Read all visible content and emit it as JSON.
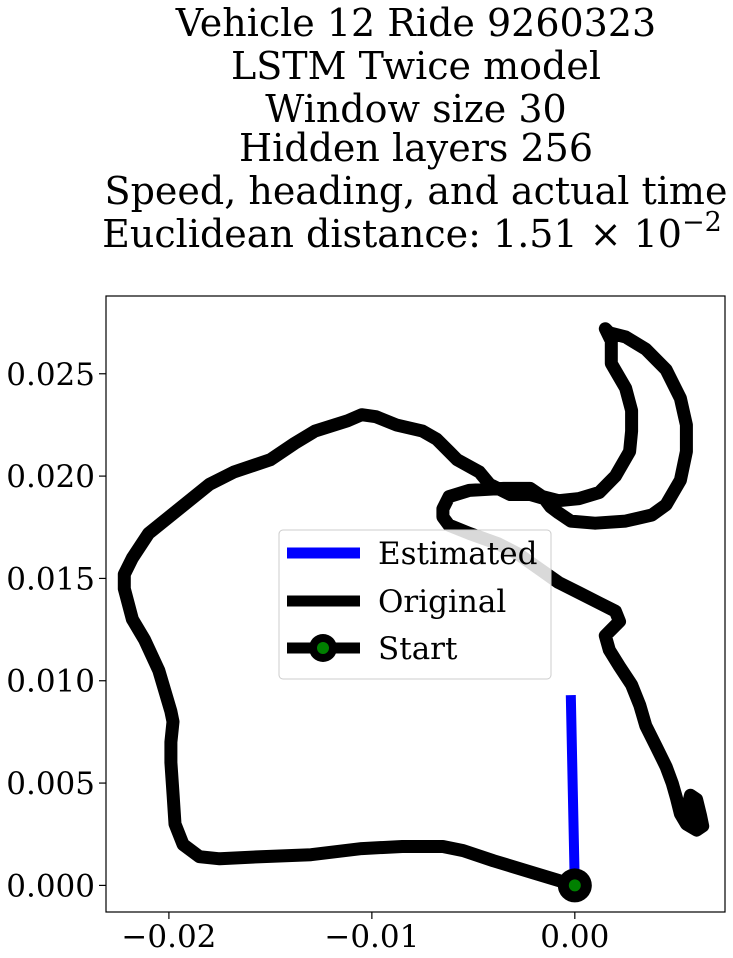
{
  "chart_data": {
    "type": "line",
    "title_lines": [
      "Vehicle 12 Ride 9260323",
      "LSTM Twice model",
      "Window size 30",
      "Hidden layers 256",
      "Speed, heading, and actual time",
      "Euclidean distance: 1.51 × 10",
      "−2"
    ],
    "xlabel": "",
    "ylabel": "",
    "xlim": [
      -0.0231,
      0.0074
    ],
    "ylim": [
      -0.0013,
      0.0288
    ],
    "x_ticks": [
      {
        "value": -0.02,
        "label": "−0.02"
      },
      {
        "value": -0.01,
        "label": "−0.01"
      },
      {
        "value": 0.0,
        "label": "0.00"
      }
    ],
    "y_ticks": [
      {
        "value": 0.0,
        "label": "0.000"
      },
      {
        "value": 0.005,
        "label": "0.005"
      },
      {
        "value": 0.01,
        "label": "0.010"
      },
      {
        "value": 0.015,
        "label": "0.015"
      },
      {
        "value": 0.02,
        "label": "0.020"
      },
      {
        "value": 0.025,
        "label": "0.025"
      }
    ],
    "grid": false,
    "legend_position": "center",
    "legend": [
      {
        "label": "Estimated",
        "color": "#0000ff"
      },
      {
        "label": "Original",
        "color": "#000000"
      },
      {
        "label": "Start",
        "color": "#000000",
        "marker_color": "#008000"
      }
    ],
    "series": [
      {
        "name": "Original",
        "color": "#000000",
        "points": [
          [
            0.0,
            0.0
          ],
          [
            -0.002,
            0.0006
          ],
          [
            -0.004,
            0.0012
          ],
          [
            -0.0055,
            0.0017
          ],
          [
            -0.0065,
            0.0019
          ],
          [
            -0.0085,
            0.0019
          ],
          [
            -0.0105,
            0.0018
          ],
          [
            -0.013,
            0.0015
          ],
          [
            -0.0155,
            0.0014
          ],
          [
            -0.0175,
            0.0013
          ],
          [
            -0.0185,
            0.0014
          ],
          [
            -0.0193,
            0.002
          ],
          [
            -0.0197,
            0.003
          ],
          [
            -0.0198,
            0.0045
          ],
          [
            -0.0199,
            0.006
          ],
          [
            -0.0199,
            0.007
          ],
          [
            -0.0198,
            0.008
          ],
          [
            -0.0199,
            0.0085
          ],
          [
            -0.0205,
            0.0105
          ],
          [
            -0.0212,
            0.012
          ],
          [
            -0.0218,
            0.013
          ],
          [
            -0.0222,
            0.0145
          ],
          [
            -0.0222,
            0.0152
          ],
          [
            -0.0218,
            0.016
          ],
          [
            -0.021,
            0.0172
          ],
          [
            -0.019,
            0.0188
          ],
          [
            -0.018,
            0.0196
          ],
          [
            -0.0168,
            0.0202
          ],
          [
            -0.015,
            0.0208
          ],
          [
            -0.0138,
            0.0216
          ],
          [
            -0.0128,
            0.0222
          ],
          [
            -0.0112,
            0.0227
          ],
          [
            -0.0105,
            0.023
          ],
          [
            -0.0098,
            0.0229
          ],
          [
            -0.0088,
            0.0225
          ],
          [
            -0.0075,
            0.0222
          ],
          [
            -0.0068,
            0.0218
          ],
          [
            -0.0062,
            0.0212
          ],
          [
            -0.0058,
            0.0208
          ],
          [
            -0.0047,
            0.0202
          ],
          [
            -0.0042,
            0.0196
          ],
          [
            -0.0032,
            0.0191
          ],
          [
            -0.0022,
            0.0191
          ],
          [
            -0.0015,
            0.0189
          ],
          [
            -0.0012,
            0.0185
          ],
          [
            -0.0008,
            0.0182
          ],
          [
            -0.0002,
            0.0178
          ],
          [
            0.001,
            0.0177
          ],
          [
            0.0025,
            0.0178
          ],
          [
            0.0038,
            0.0181
          ],
          [
            0.0045,
            0.0186
          ],
          [
            0.0052,
            0.0198
          ],
          [
            0.0055,
            0.0212
          ],
          [
            0.0055,
            0.0225
          ],
          [
            0.0052,
            0.0238
          ],
          [
            0.0045,
            0.0252
          ],
          [
            0.0035,
            0.0262
          ],
          [
            0.0025,
            0.0268
          ],
          [
            0.0017,
            0.027
          ],
          [
            0.0015,
            0.0272
          ],
          [
            0.0018,
            0.0266
          ],
          [
            0.0018,
            0.0255
          ],
          [
            0.0025,
            0.0243
          ],
          [
            0.0028,
            0.0232
          ],
          [
            0.0028,
            0.0222
          ],
          [
            0.0027,
            0.0212
          ],
          [
            0.002,
            0.02
          ],
          [
            0.0012,
            0.0192
          ],
          [
            0.0002,
            0.0189
          ],
          [
            -0.0008,
            0.0188
          ],
          [
            -0.0016,
            0.019
          ],
          [
            -0.0022,
            0.0194
          ],
          [
            -0.0035,
            0.0194
          ],
          [
            -0.0052,
            0.0193
          ],
          [
            -0.0062,
            0.019
          ],
          [
            -0.0065,
            0.0184
          ],
          [
            -0.0065,
            0.018
          ],
          [
            -0.0062,
            0.0176
          ],
          [
            -0.0052,
            0.0172
          ],
          [
            -0.0038,
            0.0167
          ],
          [
            -0.0028,
            0.0162
          ],
          [
            -0.0018,
            0.0155
          ],
          [
            -0.0008,
            0.0148
          ],
          [
            0.0002,
            0.0143
          ],
          [
            0.0012,
            0.0138
          ],
          [
            0.002,
            0.0134
          ],
          [
            0.0022,
            0.0129
          ],
          [
            0.0018,
            0.0125
          ],
          [
            0.0015,
            0.0122
          ],
          [
            0.0017,
            0.0115
          ],
          [
            0.0022,
            0.0107
          ],
          [
            0.0028,
            0.0098
          ],
          [
            0.0032,
            0.0088
          ],
          [
            0.0035,
            0.0078
          ],
          [
            0.004,
            0.0068
          ],
          [
            0.0045,
            0.0058
          ],
          [
            0.0048,
            0.005
          ],
          [
            0.005,
            0.0043
          ],
          [
            0.0052,
            0.0035
          ],
          [
            0.0055,
            0.003
          ],
          [
            0.006,
            0.0027
          ],
          [
            0.0063,
            0.0029
          ],
          [
            0.0062,
            0.0034
          ],
          [
            0.006,
            0.0042
          ],
          [
            0.0057,
            0.0044
          ],
          [
            0.0056,
            0.004
          ],
          [
            0.0058,
            0.0033
          ]
        ]
      },
      {
        "name": "Estimated",
        "color": "#0000ff",
        "points": [
          [
            0.0,
            0.0
          ],
          [
            -0.0001,
            0.0046
          ],
          [
            -0.0002,
            0.0093
          ]
        ]
      }
    ],
    "start_point": [
      0.0,
      0.0
    ],
    "start_marker_color": "#008000"
  }
}
